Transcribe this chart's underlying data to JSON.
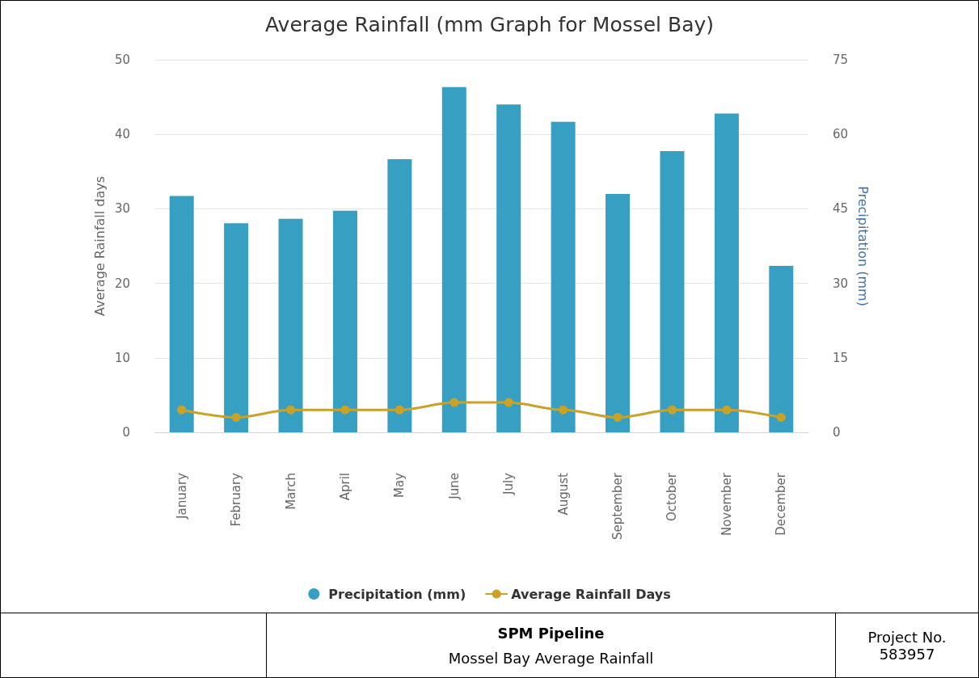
{
  "chart_data": {
    "type": "bar",
    "title": "Average Rainfall (mm Graph for Mossel Bay)",
    "ylabel": "Average Rainfall days",
    "y2label": "Precipitation (mm)",
    "categories": [
      "January",
      "February",
      "March",
      "April",
      "May",
      "June",
      "July",
      "August",
      "September",
      "October",
      "November",
      "December"
    ],
    "series": [
      {
        "name": "Precipitation (mm)",
        "axis": "y2",
        "color": "#379fc2",
        "values": [
          47.6,
          42.1,
          43,
          44.6,
          55,
          69.5,
          66,
          62.5,
          48,
          56.6,
          64.2,
          33.5
        ]
      },
      {
        "name": "Average Rainfall Days",
        "type": "line",
        "axis": "y",
        "color": "#c9a227",
        "values": [
          3,
          2,
          3,
          3,
          3,
          4,
          4,
          3,
          2,
          3,
          3,
          2
        ]
      }
    ],
    "ylim": [
      0,
      50
    ],
    "yticks": [
      0,
      10,
      20,
      30,
      40,
      50
    ],
    "y2lim": [
      0,
      75
    ],
    "y2ticks": [
      0,
      15,
      30,
      45,
      60,
      75
    ],
    "grid": "y",
    "legend": "bottom",
    "marker": "circle",
    "line_style": "solid",
    "annotations": [
      "SPM Pipeline",
      "Mossel Bay Average Rainfall",
      "Project No. 583957"
    ]
  }
}
